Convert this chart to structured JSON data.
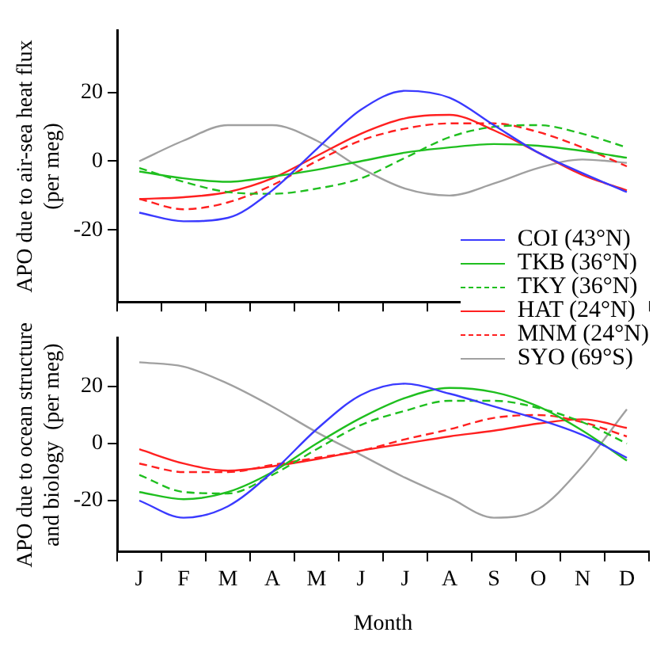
{
  "chart_data": [
    {
      "type": "line",
      "ylabel": "APO due to air-sea heat flux\n(per meg)",
      "categories": [
        null,
        null,
        null,
        null,
        null,
        null,
        null,
        null,
        null,
        null,
        null,
        null
      ],
      "ylim": [
        -41,
        38
      ],
      "yticks": [
        -20,
        0,
        20
      ],
      "tick_labels": "y",
      "grid": false,
      "legend": "bottom right",
      "marker": "none",
      "series": [
        {
          "name": "COI (43°N)",
          "color": "#3a3aff",
          "line_style": "solid",
          "values": [
            -15,
            -17.5,
            -16.5,
            -8.5,
            3.5,
            15,
            20.5,
            18.5,
            10.5,
            2.5,
            -3.5,
            -9
          ]
        },
        {
          "name": "TKB (36°N)",
          "color": "#1fbf1f",
          "line_style": "solid",
          "values": [
            -3,
            -5,
            -6,
            -4.5,
            -2.5,
            0,
            2.5,
            4,
            5,
            4.5,
            3,
            1
          ]
        },
        {
          "name": "TKY (36°N)",
          "color": "#1fbf1f",
          "line_style": "dashed",
          "values": [
            -2,
            -6,
            -9,
            -9.5,
            -8,
            -5,
            1,
            7,
            10,
            10.5,
            8,
            4
          ]
        },
        {
          "name": "HAT (24°N)",
          "color": "#ff2020",
          "line_style": "solid",
          "values": [
            -11,
            -10.5,
            -9,
            -5,
            1.5,
            8,
            12.5,
            13.5,
            9,
            2.5,
            -4,
            -8.5
          ]
        },
        {
          "name": "MNM (24°N)",
          "color": "#ff2020",
          "line_style": "dashed",
          "values": [
            -11,
            -14,
            -12,
            -7,
            0,
            6,
            9.5,
            11,
            11,
            8.5,
            4,
            -1.5
          ]
        },
        {
          "name": "SYO (69°S)",
          "color": "#a0a0a0",
          "line_style": "solid",
          "values": [
            0,
            6,
            10.5,
            10.5,
            6,
            -2,
            -8,
            -10,
            -6.5,
            -2,
            0.5,
            -0.5
          ]
        }
      ]
    },
    {
      "type": "line",
      "ylabel": "APO due to ocean structure\nand biology  (per meg)",
      "xlabel": "Month",
      "categories": [
        "J",
        "F",
        "M",
        "A",
        "M",
        "J",
        "J",
        "A",
        "S",
        "O",
        "N",
        "D"
      ],
      "ylim": [
        -38,
        37
      ],
      "yticks": [
        -20,
        0,
        20
      ],
      "grid": false,
      "marker": "none",
      "series": [
        {
          "color": "#3a3aff",
          "line_style": "solid",
          "values": [
            -20,
            -26,
            -22,
            -10,
            5,
            17,
            21,
            17.5,
            13,
            8.5,
            3,
            -5
          ]
        },
        {
          "color": "#1fbf1f",
          "line_style": "solid",
          "values": [
            -17,
            -19.5,
            -17,
            -10,
            0,
            9,
            16,
            19.5,
            18,
            13,
            4.5,
            -6
          ]
        },
        {
          "color": "#1fbf1f",
          "line_style": "dashed",
          "values": [
            -11,
            -17,
            -17.5,
            -11,
            -2,
            6.5,
            11.5,
            15,
            15,
            12.5,
            7.5,
            0
          ]
        },
        {
          "color": "#ff2020",
          "line_style": "solid",
          "values": [
            -2,
            -7,
            -9.5,
            -8,
            -5.5,
            -2.5,
            0,
            2.5,
            4.5,
            7,
            8.5,
            5.5
          ]
        },
        {
          "color": "#ff2020",
          "line_style": "dashed",
          "values": [
            -7,
            -10,
            -10,
            -7.5,
            -5,
            -2.5,
            1.5,
            5,
            9,
            10,
            7.5,
            2.5
          ]
        },
        {
          "color": "#a0a0a0",
          "line_style": "solid",
          "values": [
            28.5,
            27,
            21,
            13,
            4,
            -4,
            -12,
            -19,
            -26,
            -23,
            -8,
            12
          ]
        }
      ]
    }
  ]
}
